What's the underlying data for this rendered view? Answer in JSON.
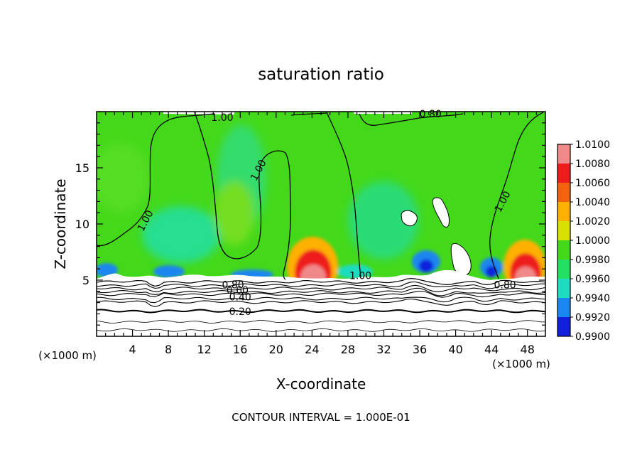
{
  "chart_data": {
    "type": "heatmap",
    "title": "saturation ratio",
    "xlabel": "X-coordinate",
    "ylabel": "Z-coordinate",
    "x_unit_label": "(×1000 m)",
    "footer": "CONTOUR INTERVAL = 1.000E-01",
    "xlim": [
      0,
      50
    ],
    "ylim": [
      0,
      20
    ],
    "x_ticks": [
      4,
      8,
      12,
      16,
      20,
      24,
      28,
      32,
      36,
      40,
      44,
      48
    ],
    "y_ticks": [
      5,
      10,
      15
    ],
    "colorbar": {
      "levels": [
        1.01,
        1.008,
        1.006,
        1.004,
        1.002,
        1.0,
        0.998,
        0.996,
        0.994,
        0.992,
        0.99
      ],
      "labels": [
        "1.0100",
        "1.0080",
        "1.0060",
        "1.0040",
        "1.0020",
        "1.0000",
        "0.9980",
        "0.9960",
        "0.9940",
        "0.9920",
        "0.9900"
      ],
      "colors": [
        "#f08a8a",
        "#ee1c1c",
        "#f5620e",
        "#ffb000",
        "#d8e000",
        "#44d81a",
        "#24e060",
        "#1edcc0",
        "#1a86f0",
        "#1020dc",
        "#6a10b0"
      ]
    },
    "background_color": "#44d81a",
    "contour_labels": [
      {
        "text": "1.00",
        "x": 14.0,
        "y": 19.5,
        "angle": 0
      },
      {
        "text": "0.80",
        "x": 37.2,
        "y": 19.8,
        "angle": 0
      },
      {
        "text": "1.00",
        "x": 18.0,
        "y": 14.8,
        "angle": -62
      },
      {
        "text": "1.00",
        "x": 5.4,
        "y": 10.3,
        "angle": -62
      },
      {
        "text": "1.00",
        "x": 45.2,
        "y": 12.0,
        "angle": -62
      },
      {
        "text": "1.00",
        "x": 29.4,
        "y": 5.4,
        "angle": 0
      },
      {
        "text": "0.80",
        "x": 15.2,
        "y": 4.6,
        "angle": 0
      },
      {
        "text": "0.60",
        "x": 15.7,
        "y": 4.1,
        "angle": 0
      },
      {
        "text": "0.40",
        "x": 16.0,
        "y": 3.5,
        "angle": 0
      },
      {
        "text": "0.20",
        "x": 16.0,
        "y": 2.2,
        "angle": 0
      },
      {
        "text": "0.80",
        "x": 45.5,
        "y": 4.6,
        "angle": 0
      }
    ],
    "lower_contour_levels": [
      0.8,
      0.6,
      0.4,
      0.2
    ]
  }
}
